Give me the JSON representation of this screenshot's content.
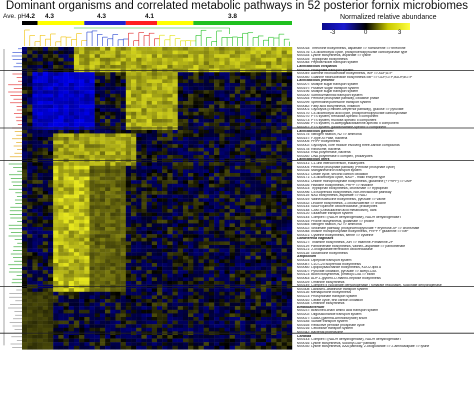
{
  "title": "Dominant organisms and correlated metabolic pathways in 52 posterior fornix microbiomes",
  "ave_ph_label": "Ave. pH",
  "ph_values": [
    "4.2",
    "4.3",
    "4.3",
    "4.1",
    "3.8"
  ],
  "legend": {
    "title": "Normalized relative abundance",
    "min": "-3",
    "mid": "0",
    "max": "3",
    "colors": {
      "low": "#1a1ad0",
      "zero": "#000000",
      "high": "#ffff40"
    }
  },
  "bar_colors": [
    "#000000",
    "#ffff00",
    "#2020d0",
    "#ff2020",
    "#ffff00",
    "#20c020"
  ],
  "row_labels": [
    {
      "t": "M00018: Threonine biosynthesis, aspartate => homoserine => threonine"
    },
    {
      "t": "M00176: C4-dicarboxylic cycle, phosphoenolpyruvate carboxykinase type"
    },
    {
      "t": "M00334: Lysine biosynthesis, aspartate => lysine"
    },
    {
      "t": "M00025: Tryptophan biosynthesis"
    },
    {
      "t": "M00048: Peptide/nickel transport system"
    },
    {
      "t": "Lactobacillus crispatus",
      "g": true
    },
    {
      "t": "M00222: Phosphate transport system"
    },
    {
      "t": "M00049: Adenine ribonucleotide biosynthesis, IMP => ADP,ATP"
    },
    {
      "t": "M00050: Guanine ribonucleotide biosynthesis IMP => GDP,GTP,dGDP,dGTP"
    },
    {
      "t": "Lactobacillus jensenii",
      "g": true
    },
    {
      "t": "M00207: Multiple sugar transport system"
    },
    {
      "t": "M00197: Putative sugar transport system"
    },
    {
      "t": "M00196: Multiple sugar transport system"
    },
    {
      "t": "M00200: Sorbitol/mannitol transport system"
    },
    {
      "t": "M00264: Pentose phosphate pathway, oxidative phase"
    },
    {
      "t": "M00299: Spermidine/putrescine transport system"
    },
    {
      "t": "M00082: Fatty acid biosynthesis, initiation"
    },
    {
      "t": "M00001: Glycolysis (Embden-Meyerhof pathway), glucose => pyruvate"
    },
    {
      "t": "M00170: C4-dicarboxylic acid cycle, phosphoenolpyruvate carboxykinase"
    },
    {
      "t": "M00270: PTS system, trehalose-specific II component"
    },
    {
      "t": "M00273: PTS system, fructose-specific II component"
    },
    {
      "t": "M00266: PTS system, N-acetylgalactosamine-specific II component"
    },
    {
      "t": "M00267: PTS system, galactosamine-specific II component"
    },
    {
      "t": "Lactobacillus gasseri",
      "g": true
    },
    {
      "t": "M00175: Nitrogen fixation, N2 => ammonia"
    },
    {
      "t": "M00157: F-type ATPase, bacteria"
    },
    {
      "t": "M00005: PRPP biosynthesis"
    },
    {
      "t": "M00002: Glycolysis, core module involving three-carbon compounds"
    },
    {
      "t": "M00178: Ribosome, bacteria"
    },
    {
      "t": "M00183: RNA polymerase, bacteria"
    },
    {
      "t": "M00260: DNA polymerase II complex, prokaryotes"
    },
    {
      "t": "Lactobacillus iners",
      "g": true
    },
    {
      "t": "M00141: C1-unit interconversion, eukaryotes"
    },
    {
      "t": "M00004: Pentose phosphate pathway (Pentose phosphate cycle)"
    },
    {
      "t": "M00316: Manganese/iron transport system"
    },
    {
      "t": "M00011: Citrate cycle, second carbon oxidation"
    },
    {
      "t": "M00171: C4-dicarboxylic cycle, NAD+ - malic enzyme type"
    },
    {
      "t": "M00051: Uridine monophosphate biosynthesis, glutamine (+ PRPP) => UMP"
    },
    {
      "t": "M00026: Histidine biosynthesis, PRPP => histidine"
    },
    {
      "t": "M00023: Tryptophan biosynthesis, chorismate => tryptophan"
    },
    {
      "t": "M00096: C5 isoprenoid biosynthesis, non-mevalonate pathway"
    },
    {
      "t": "M00115: NAD biosynthesis, aspartate => NAD"
    },
    {
      "t": "M00019: Valine/isoleucine biosynthesis, pyruvate => valine"
    },
    {
      "t": "M00432: Leucine biosynthesis, 2-oxoisovalerate => leucine"
    },
    {
      "t": "M00144: NADH:quinone oxidoreductase, prokaryotes"
    },
    {
      "t": "M00148: CAM (Crassulacean acid metabolism), dark"
    },
    {
      "t": "M00120: Glutamate transport system"
    },
    {
      "t": "M00144: Complex I (NADH dehydrogenase), NADH dehydrogenase I"
    },
    {
      "t": "M00015: Proline biosynthesis, glutamate => proline"
    },
    {
      "t": "M00364: Nitrogen fixation, N2 => ammonia"
    },
    {
      "t": "M00022: Shikimate pathway, phosphoenolpyruvate + erythrose-4P => chorismate"
    },
    {
      "t": "M00048: Inosine monophosphate biosynthesis, PRPP + glutamine => IMP"
    },
    {
      "t": "M00021: Cysteine biosynthesis, serine => cysteine"
    },
    {
      "t": "Gardnerella vaginalis",
      "g": true
    },
    {
      "t": "M00127: Thiamine biosynthesis, AIR => thiamine-P/thiamine-2P"
    },
    {
      "t": "M00119: Pantothenate biosynthesis, valine/L-aspartate => pantothenate"
    },
    {
      "t": "M00121: 2-oxoglutarate/ferredoxin oxidoreductase"
    },
    {
      "t": "M00118: Glutathione biosynthesis"
    },
    {
      "t": "Atopobium",
      "g": true
    },
    {
      "t": "M00024: Dipeptide transport system"
    },
    {
      "t": "M00087: C10-C20 isoprenoid biosynthesis"
    },
    {
      "t": "M00060: Lipopolysaccharide biosynthesis, KDO2-lipid A"
    },
    {
      "t": "M00307: Pyruvate oxidation, pyruvate => acetyl-CoA"
    },
    {
      "t": "M00123: Biotin biosynthesis, pimeloyl-CoA => biotin"
    },
    {
      "t": "M00063: ADP-L-glycero-D-manno-heptose biosynthesis"
    },
    {
      "t": "M00029: Ornithine biosynthesis"
    },
    {
      "t": "M00149: Complex II (succinate dehydrogenase / fumarate reductase), succinate dehydrogenase"
    },
    {
      "t": "M00308: Lactose/L-arabinose transport system"
    },
    {
      "t": "M00116: Menaquinone biosynthesis"
    },
    {
      "t": "M00223: Phosphonate transport system"
    },
    {
      "t": "M00010: Citrate cycle, first carbon oxidation"
    },
    {
      "t": "M00028: Ornithine biosynthesis"
    },
    {
      "t": "Bifidobacterium",
      "g": true
    },
    {
      "t": "M00237: Branched-chain amino acid transport system"
    },
    {
      "t": "M00202: Oligosaccharide transport system"
    },
    {
      "t": "M00027: GABA (gamma-Aminobutyrate) shunt"
    },
    {
      "t": "M00185: Sulfate transport system"
    },
    {
      "t": "M00165: Reductive pentose phosphate cycle"
    },
    {
      "t": "M00216: Cellobiose transport system"
    },
    {
      "t": "M00342: Bacterial proteasome"
    },
    {
      "t": "Candida",
      "g": true
    },
    {
      "t": "M00143: Complex I (NADH dehydrogenase), NADH dehydrogenase I"
    },
    {
      "t": "M00016: Lysine biosynthesis, succinyl-DAP pathway"
    },
    {
      "t": "M00030: Lysine biosynthesis, AAA pathway, 2-oxoglutarate => 2-aminoadipate => lysine"
    }
  ]
}
